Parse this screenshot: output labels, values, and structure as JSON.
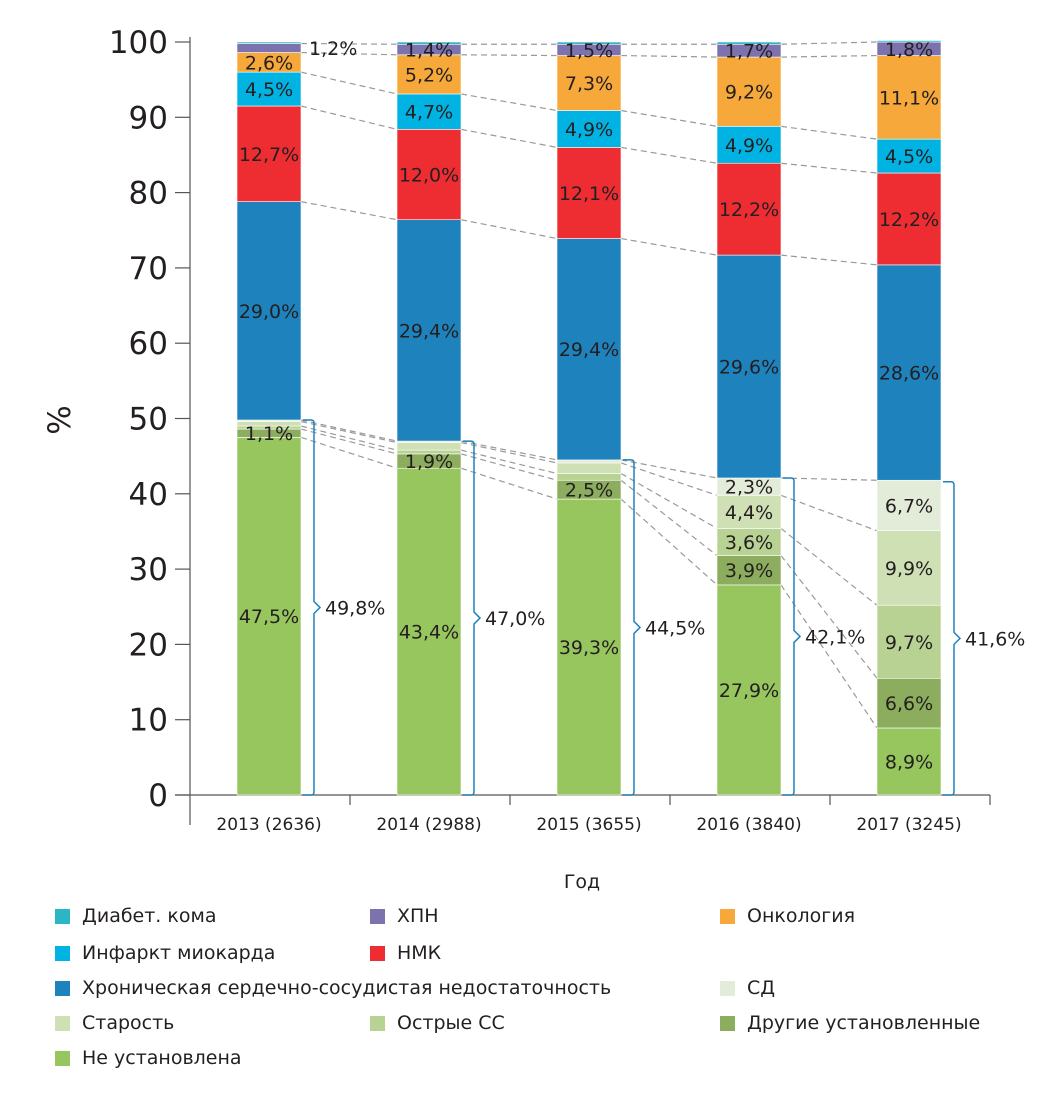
{
  "chart_data": {
    "type": "bar",
    "stacked": true,
    "xlabel": "Год",
    "ylabel": "%",
    "ylim": [
      0,
      100
    ],
    "yticks": [
      0,
      10,
      20,
      30,
      40,
      50,
      60,
      70,
      80,
      90,
      100
    ],
    "categories": [
      "2013 (2636)",
      "2014 (2988)",
      "2015 (3655)",
      "2016 (3840)",
      "2017 (3245)"
    ],
    "series": [
      {
        "name": "Не установлена",
        "color": "#97c65f",
        "values": [
          47.5,
          43.4,
          39.3,
          27.9,
          8.9
        ],
        "labels": [
          "47,5%",
          "43,4%",
          "39,3%",
          "27,9%",
          "8,9%"
        ]
      },
      {
        "name": "Другие установленные",
        "color": "#8cad5d",
        "values": [
          1.1,
          1.9,
          2.5,
          3.9,
          6.6
        ],
        "labels": [
          "1,1%",
          "1,9%",
          "2,5%",
          "3,9%",
          "6,6%"
        ]
      },
      {
        "name": "Острые СС",
        "color": "#b8d293",
        "values": [
          0.4,
          0.5,
          0.9,
          3.6,
          9.7
        ],
        "labels": [
          null,
          null,
          null,
          "3,6%",
          "9,7%"
        ]
      },
      {
        "name": "Старость",
        "color": "#cfe0b5",
        "values": [
          0.6,
          1.0,
          1.4,
          4.4,
          9.9
        ],
        "labels": [
          null,
          null,
          null,
          "4,4%",
          "9,9%"
        ]
      },
      {
        "name": "СД",
        "color": "#e3ecd8",
        "values": [
          0.2,
          0.2,
          0.4,
          2.3,
          6.7
        ],
        "labels": [
          null,
          null,
          null,
          "2,3%",
          "6,7%"
        ]
      },
      {
        "name": "Хроническая сердечно-сосудистая недостаточность",
        "color": "#1e82bd",
        "values": [
          29.0,
          29.4,
          29.4,
          29.6,
          28.6
        ],
        "labels": [
          "29,0%",
          "29,4%",
          "29,4%",
          "29,6%",
          "28,6%"
        ]
      },
      {
        "name": "НМК",
        "color": "#ee2d33",
        "values": [
          12.7,
          12.0,
          12.1,
          12.2,
          12.2
        ],
        "labels": [
          "12,7%",
          "12,0%",
          "12,1%",
          "12,2%",
          "12,2%"
        ]
      },
      {
        "name": "Инфаркт миокарда",
        "color": "#00b3e3",
        "values": [
          4.5,
          4.7,
          4.9,
          4.9,
          4.5
        ],
        "labels": [
          "4,5%",
          "4,7%",
          "4,9%",
          "4,9%",
          "4,5%"
        ]
      },
      {
        "name": "Онкология",
        "color": "#f7a83a",
        "values": [
          2.6,
          5.2,
          7.3,
          9.2,
          11.1
        ],
        "labels": [
          "2,6%",
          "5,2%",
          "7,3%",
          "9,2%",
          "11,1%"
        ]
      },
      {
        "name": "ХПН",
        "color": "#7b72ae",
        "values": [
          1.2,
          1.4,
          1.5,
          1.7,
          1.8
        ],
        "labels": [
          "1,2%",
          "1,4%",
          "1,5%",
          "1,7%",
          "1,8%"
        ]
      },
      {
        "name": "Диабет. кома",
        "color": "#2bb5c5",
        "values": [
          0.2,
          0.3,
          0.3,
          0.3,
          0.2
        ],
        "labels": [
          null,
          null,
          null,
          null,
          null
        ]
      }
    ],
    "group_totals": {
      "values": [
        49.8,
        47.0,
        44.5,
        42.1,
        41.6
      ],
      "labels": [
        "49,8%",
        "47,0%",
        "44,5%",
        "42,1%",
        "41,6%"
      ],
      "bracket_color": "#1e82bd"
    },
    "grid": false,
    "legend_placement": "bottom",
    "legend_order": [
      "Диабет. кома",
      "ХПН",
      "Онкология",
      "Инфаркт миокарда",
      "НМК",
      "Хроническая сердечно-сосудистая недостаточность",
      "СД",
      "Старость",
      "Острые СС",
      "Другие установленные",
      "Не установлена"
    ]
  }
}
